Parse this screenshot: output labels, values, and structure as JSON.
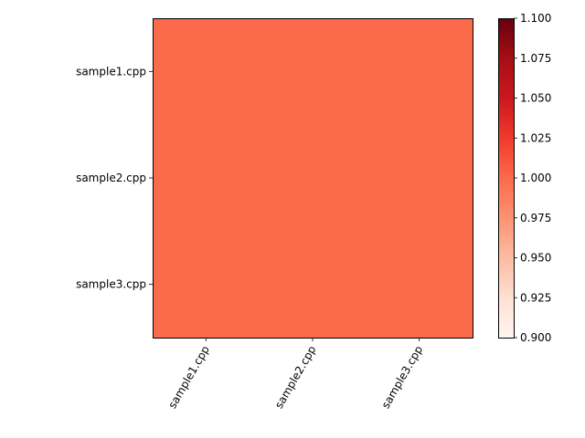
{
  "chart_data": {
    "type": "heatmap",
    "title": "",
    "xlabel": "",
    "ylabel": "",
    "x_categories": [
      "sample1.cpp",
      "sample2.cpp",
      "sample3.cpp"
    ],
    "y_categories": [
      "sample1.cpp",
      "sample2.cpp",
      "sample3.cpp"
    ],
    "values": [
      [
        1.0,
        1.0,
        1.0
      ],
      [
        1.0,
        1.0,
        1.0
      ],
      [
        1.0,
        1.0,
        1.0
      ]
    ],
    "colormap": "Reds",
    "colorbar": {
      "min": 0.9,
      "max": 1.1,
      "ticks": [
        "0.900",
        "0.925",
        "0.950",
        "0.975",
        "1.000",
        "1.025",
        "1.050",
        "1.075",
        "1.100"
      ]
    },
    "cell_color": "#fb6a4a",
    "x_tick_rotation": 60,
    "grid": false,
    "legend": "colorbar-right"
  }
}
